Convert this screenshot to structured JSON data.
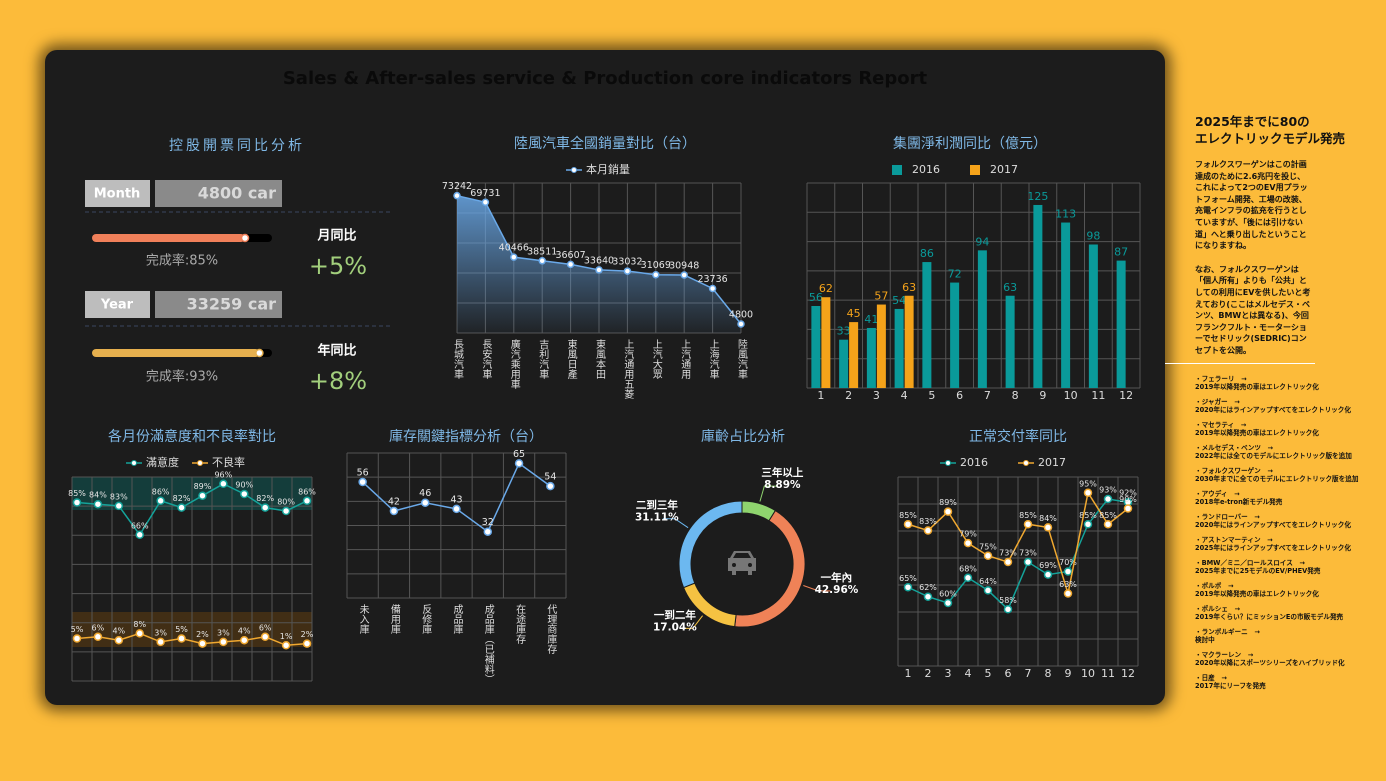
{
  "title": "Sales & After-sales service & Production core indicators Report",
  "kpi": {
    "title": "控股開票同比分析",
    "rows": [
      {
        "label": "Month",
        "value": "4800 car",
        "progress": 85,
        "progress_label": "完成率:85%",
        "compare_label": "月同比",
        "compare_value": "+5%",
        "color": "#f0805a"
      },
      {
        "label": "Year",
        "value": "33259 car",
        "progress": 93,
        "progress_label": "完成率:93%",
        "compare_label": "年同比",
        "compare_value": "+8%",
        "color": "#e6b04e"
      }
    ]
  },
  "chart_data": [
    {
      "type": "area",
      "title": "陸風汽車全國銷量對比（台）",
      "categories": [
        "長城汽車",
        "長安汽車",
        "廣汽乘用車",
        "吉利汽車",
        "東風日產",
        "東風本田",
        "上汽通用五菱",
        "上汽大眾",
        "上汽通用",
        "上海汽車",
        "陸風汽車"
      ],
      "series": [
        {
          "name": "本月銷量",
          "color": "#6aa9e9",
          "values": [
            73242,
            69731,
            40466,
            38511,
            36607,
            33640,
            33032,
            31069,
            30948,
            23736,
            4800
          ]
        }
      ],
      "ylim": [
        0,
        80000
      ]
    },
    {
      "type": "bar",
      "title": "集團淨利潤同比（億元）",
      "categories": [
        "1",
        "2",
        "3",
        "4",
        "5",
        "6",
        "7",
        "8",
        "9",
        "10",
        "11",
        "12"
      ],
      "series": [
        {
          "name": "2016",
          "color": "#0a9a9a",
          "values": [
            56,
            33,
            41,
            54,
            86,
            72,
            94,
            63,
            125,
            113,
            98,
            87
          ]
        },
        {
          "name": "2017",
          "color": "#f5a31a",
          "values": [
            62,
            45,
            57,
            63,
            null,
            null,
            null,
            null,
            null,
            null,
            null,
            null
          ]
        }
      ],
      "ylim": [
        0,
        140
      ]
    },
    {
      "type": "line",
      "title": "各月份滿意度和不良率對比",
      "categories": [
        null,
        null,
        null,
        null,
        null,
        null,
        null,
        null,
        null,
        null,
        null,
        null
      ],
      "series": [
        {
          "name": "滿意度",
          "color": "#14a39a",
          "values": [
            85,
            84,
            83,
            66,
            86,
            82,
            89,
            96,
            90,
            82,
            80,
            86
          ],
          "value_labels": [
            "85%",
            "84%",
            "83%",
            "66%",
            "86%",
            "82%",
            "89%",
            "96%",
            "90%",
            "82%",
            "80%",
            "86%"
          ]
        },
        {
          "name": "不良率",
          "color": "#f0a830",
          "values": [
            5,
            6,
            4,
            8,
            3,
            5,
            2,
            3,
            4,
            6,
            1,
            2
          ],
          "value_labels": [
            "5%",
            "6%",
            "4%",
            "8%",
            "3%",
            "5%",
            "2%",
            "3%",
            "4%",
            "6%",
            "1%",
            "2%"
          ]
        }
      ],
      "ylim": [
        -20,
        100
      ]
    },
    {
      "type": "line",
      "title": "庫存關鍵指標分析（台）",
      "categories": [
        "未入庫",
        "備用庫",
        "反修庫",
        "成品庫",
        "成品庫（已補料）",
        "在途庫存",
        "代理商庫存"
      ],
      "color": "#6aa9e9",
      "values": [
        56,
        42,
        46,
        43,
        32,
        65,
        54
      ],
      "ylim": [
        0,
        70
      ]
    },
    {
      "type": "donut",
      "title": "庫齡占比分析",
      "categories": [
        "三年以上",
        "一年內",
        "一到二年",
        "二到三年"
      ],
      "values": [
        8.89,
        42.96,
        17.04,
        31.11
      ],
      "value_labels": [
        "8.89%",
        "42.96%",
        "17.04%",
        "31.11%"
      ],
      "colors": [
        "#8fd46e",
        "#ef8257",
        "#f5c242",
        "#6cb8f0"
      ]
    },
    {
      "type": "line",
      "title": "正常交付率同比",
      "categories": [
        "1",
        "2",
        "3",
        "4",
        "5",
        "6",
        "7",
        "8",
        "9",
        "10",
        "11",
        "12"
      ],
      "series": [
        {
          "name": "2016",
          "color": "#14a39a",
          "values": [
            65,
            62,
            60,
            68,
            64,
            58,
            73,
            69,
            70,
            85,
            93,
            92
          ],
          "value_labels": [
            "65%",
            "62%",
            "60%",
            "68%",
            "64%",
            "58%",
            "73%",
            "69%",
            "70%",
            "85%",
            "93%",
            "92%"
          ]
        },
        {
          "name": "2017",
          "color": "#f0a830",
          "values": [
            85,
            83,
            89,
            79,
            75,
            73,
            85,
            84,
            63,
            95,
            85,
            90
          ],
          "value_labels": [
            "85%",
            "83%",
            "89%",
            "79%",
            "75%",
            "73%",
            "85%",
            "84%",
            "63%",
            "95%",
            "85%",
            "90%"
          ]
        }
      ],
      "ylim": [
        40,
        100
      ]
    }
  ],
  "news": {
    "title_lines": [
      "2025年までに80の",
      "エレクトリックモデル発売"
    ],
    "paragraphs": [
      "フォルクスワーゲンはこの計画達成のために2.6兆円を投じ、これによって2つのEV用プラットフォーム開発、工場の改装、充電インフラの拡充を行うとしていますが、「後には引けない道」へと乗り出したということになりますね。",
      "なお、フォルクスワーゲンは「個人所有」よりも「公共」としての利用にEVを供したいと考えており(ここはメルセデス・ベンツ、BMWとは異なる)、今回フランクフルト・モーターショーでセドリック(SEDRIC)コンセプトを公開。"
    ],
    "items": [
      {
        "brand": "・フェラーリ　→",
        "text": "2019年以降発売の車はエレクトリック化"
      },
      {
        "brand": "・ジャガー　→",
        "text": "2020年にはラインアップすべてをエレクトリック化"
      },
      {
        "brand": "・マセラティ　→",
        "text": "2019年以降発売の車はエレクトリック化"
      },
      {
        "brand": "・メルセデス・ベンツ　→",
        "text": "2022年には全てのモデルにエレクトリック版を追加"
      },
      {
        "brand": "・フォルクスワーゲン　→",
        "text": "2030年までに全てのモデルにエレクトリック版を追加"
      },
      {
        "brand": "・アウディ　→",
        "text": "2018年e-tron新モデル発売"
      },
      {
        "brand": "・ランドローバー　→",
        "text": "2020年にはラインアップすべてをエレクトリック化"
      },
      {
        "brand": "・アストンマーティン　→",
        "text": "2025年にはラインアップすべてをエレクトリック化"
      },
      {
        "brand": "・BMW／ミニ／ロールスロイス　→",
        "text": "2025年までに25モデルのEV/PHEV発売"
      },
      {
        "brand": "・ボルボ　→",
        "text": "2019年以降発売の車はエレクトリック化"
      },
      {
        "brand": "・ポルシェ　→",
        "text": "2019年くらい？にミッションEの市販モデル発売"
      },
      {
        "brand": "・ランボルギーニ　→",
        "text": "検討中"
      },
      {
        "brand": "・マクラーレン　→",
        "text": "2020年以降にスポーツシリーズをハイブリッド化"
      },
      {
        "brand": "・日産　→",
        "text": "2017年にリーフを発売"
      }
    ]
  }
}
